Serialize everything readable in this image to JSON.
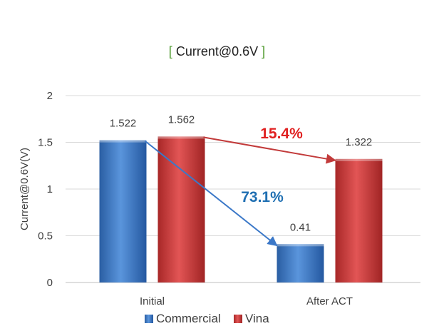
{
  "chart_data": {
    "type": "bar",
    "title": "Current@0.6V",
    "title_brackets": [
      "[",
      "]"
    ],
    "ylabel": "Current@0.6V(V)",
    "xlabel": "",
    "ylim": [
      0,
      2
    ],
    "yticks": [
      0,
      0.5,
      1,
      1.5,
      2
    ],
    "ytick_labels": [
      "0",
      "0.5",
      "1",
      "1.5",
      "2"
    ],
    "categories": [
      "Initial",
      "After ACT"
    ],
    "series": [
      {
        "name": "Commercial",
        "values": [
          1.522,
          0.41
        ],
        "labels": [
          "1.522",
          "0.41"
        ],
        "color": "#3a75c4"
      },
      {
        "name": "Vina",
        "values": [
          1.562,
          1.322
        ],
        "labels": [
          "1.562",
          "1.322"
        ],
        "color": "#d03a3a"
      }
    ],
    "annotations": [
      {
        "text": "73.1%",
        "series": "Commercial",
        "from_category": "Initial",
        "to_category": "After ACT",
        "color": "#1f6fb2"
      },
      {
        "text": "15.4%",
        "series": "Vina",
        "from_category": "Initial",
        "to_category": "After ACT",
        "color": "#e02020"
      }
    ],
    "grid": true,
    "legend_position": "bottom"
  }
}
